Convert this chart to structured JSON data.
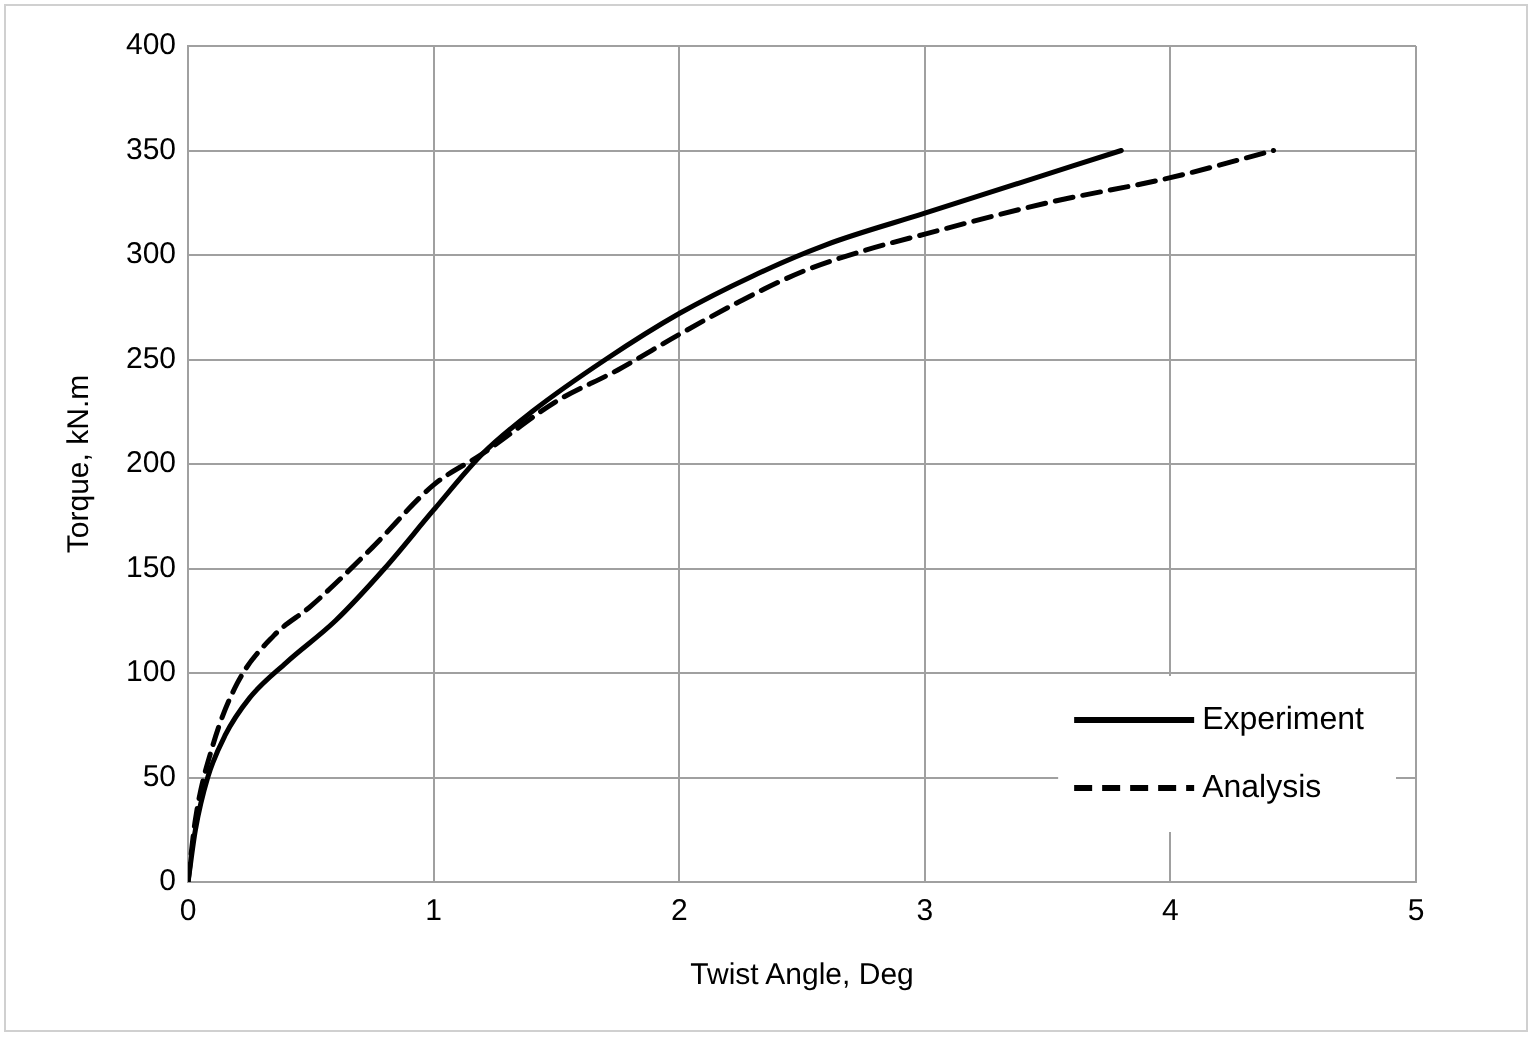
{
  "chart_data": {
    "type": "line",
    "xlabel": "Twist Angle, Deg",
    "ylabel": "Torque, kN.m",
    "xlim": [
      0,
      5
    ],
    "xticks": [
      0,
      1,
      2,
      3,
      4,
      5
    ],
    "ylim": [
      0,
      400
    ],
    "yticks": [
      0,
      50,
      100,
      150,
      200,
      250,
      300,
      350,
      400
    ],
    "grid": true,
    "legend": "bottom right",
    "marker": "none",
    "series": [
      {
        "name": "Experiment",
        "color": "#000000",
        "line_style": "solid",
        "x": [
          0,
          0.03,
          0.08,
          0.15,
          0.25,
          0.4,
          0.6,
          0.8,
          1,
          1.2,
          1.4,
          1.7,
          2,
          2.3,
          2.6,
          3,
          3.4,
          3.8
        ],
        "values": [
          0,
          25,
          50,
          70,
          88,
          105,
          125,
          150,
          178,
          205,
          225,
          250,
          272,
          290,
          305,
          320,
          335,
          350
        ]
      },
      {
        "name": "Analysis",
        "color": "#000000",
        "line_style": "dashed",
        "x": [
          0,
          0.03,
          0.1,
          0.2,
          0.35,
          0.5,
          0.75,
          1,
          1.2,
          1.5,
          1.75,
          2,
          2.25,
          2.5,
          2.75,
          3,
          3.5,
          4,
          4.42
        ],
        "values": [
          0,
          30,
          65,
          95,
          118,
          132,
          160,
          190,
          205,
          230,
          245,
          262,
          278,
          292,
          302,
          310,
          325,
          337,
          350
        ]
      }
    ]
  }
}
